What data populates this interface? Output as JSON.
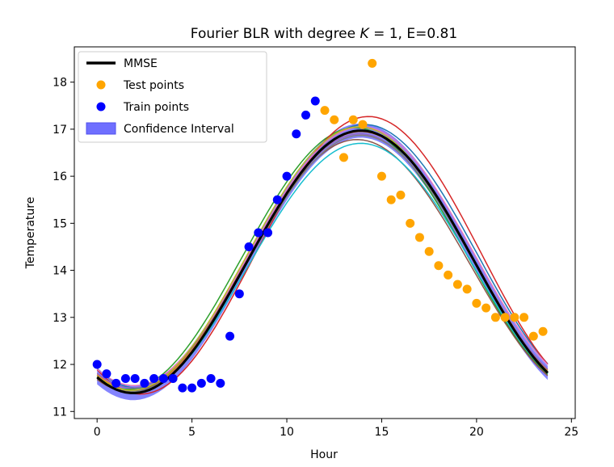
{
  "chart_data": {
    "type": "scatter",
    "title": "Fourier BLR with degree ",
    "title_k": "K",
    "title_rest": " = 1, E=0.81",
    "xlabel": "Hour",
    "ylabel": "Temperature",
    "xlim": [
      -1.2,
      25.2
    ],
    "ylim": [
      10.85,
      18.75
    ],
    "xticks": [
      0,
      5,
      10,
      15,
      20,
      25
    ],
    "yticks": [
      11,
      12,
      13,
      14,
      15,
      16,
      17,
      18
    ],
    "legend_position": "upper-left",
    "legend": [
      {
        "label": "MMSE",
        "kind": "line",
        "color": "#000000"
      },
      {
        "label": "Test points",
        "kind": "dot",
        "color": "#ffa500"
      },
      {
        "label": "Train points",
        "kind": "dot",
        "color": "#0000ff"
      },
      {
        "label": "Confidence Interval",
        "kind": "patch",
        "color": "#6f6fff"
      }
    ],
    "mmse": {
      "mean": 14.18,
      "amplitude": 2.79,
      "phase_hour": 13.9,
      "color": "#000000"
    },
    "confidence_interval": {
      "half_width": 0.15,
      "color": "#6f6fff"
    },
    "sample_curves": [
      {
        "mean": 14.3,
        "amplitude": 2.8,
        "phase_hour": 14.1,
        "color": "#1f77b4"
      },
      {
        "mean": 14.2,
        "amplitude": 2.75,
        "phase_hour": 13.9,
        "color": "#ff7f0e"
      },
      {
        "mean": 14.25,
        "amplitude": 2.78,
        "phase_hour": 13.6,
        "color": "#2ca02c"
      },
      {
        "mean": 14.32,
        "amplitude": 2.95,
        "phase_hour": 14.3,
        "color": "#d62728"
      },
      {
        "mean": 14.2,
        "amplitude": 2.7,
        "phase_hour": 13.85,
        "color": "#9467bd"
      },
      {
        "mean": 14.1,
        "amplitude": 2.68,
        "phase_hour": 13.7,
        "color": "#8c564b"
      },
      {
        "mean": 14.3,
        "amplitude": 2.75,
        "phase_hour": 13.95,
        "color": "#e377c2"
      },
      {
        "mean": 14.15,
        "amplitude": 2.72,
        "phase_hour": 13.9,
        "color": "#7f7f7f"
      },
      {
        "mean": 14.25,
        "amplitude": 2.8,
        "phase_hour": 13.8,
        "color": "#bcbd22"
      },
      {
        "mean": 14.05,
        "amplitude": 2.65,
        "phase_hour": 13.9,
        "color": "#17becf"
      }
    ],
    "train_points": {
      "color": "#0000ff",
      "x": [
        0,
        0.5,
        1,
        1.5,
        2,
        2.5,
        3,
        3.5,
        4,
        4.5,
        5,
        5.5,
        6,
        6.5,
        7,
        7.5,
        8,
        8.5,
        9,
        9.5,
        10,
        10.5,
        11,
        11.5
      ],
      "y": [
        12.0,
        11.8,
        11.6,
        11.7,
        11.7,
        11.6,
        11.7,
        11.7,
        11.7,
        11.5,
        11.5,
        11.6,
        11.7,
        11.6,
        12.6,
        13.5,
        14.5,
        14.8,
        14.8,
        15.5,
        16.0,
        16.9,
        17.3,
        17.6
      ]
    },
    "test_points": {
      "color": "#ffa500",
      "x": [
        12,
        12.5,
        13,
        13.5,
        14,
        14.5,
        15,
        15.5,
        16,
        16.5,
        17,
        17.5,
        18,
        18.5,
        19,
        19.5,
        20,
        20.5,
        21,
        21.5,
        22,
        22.5,
        23,
        23.5
      ],
      "y": [
        17.4,
        17.2,
        16.4,
        17.2,
        17.1,
        18.4,
        16.0,
        15.5,
        15.6,
        15.0,
        14.7,
        14.4,
        14.1,
        13.9,
        13.7,
        13.6,
        13.3,
        13.2,
        13.0,
        13.0,
        13.0,
        13.0,
        12.6,
        12.7
      ]
    }
  }
}
